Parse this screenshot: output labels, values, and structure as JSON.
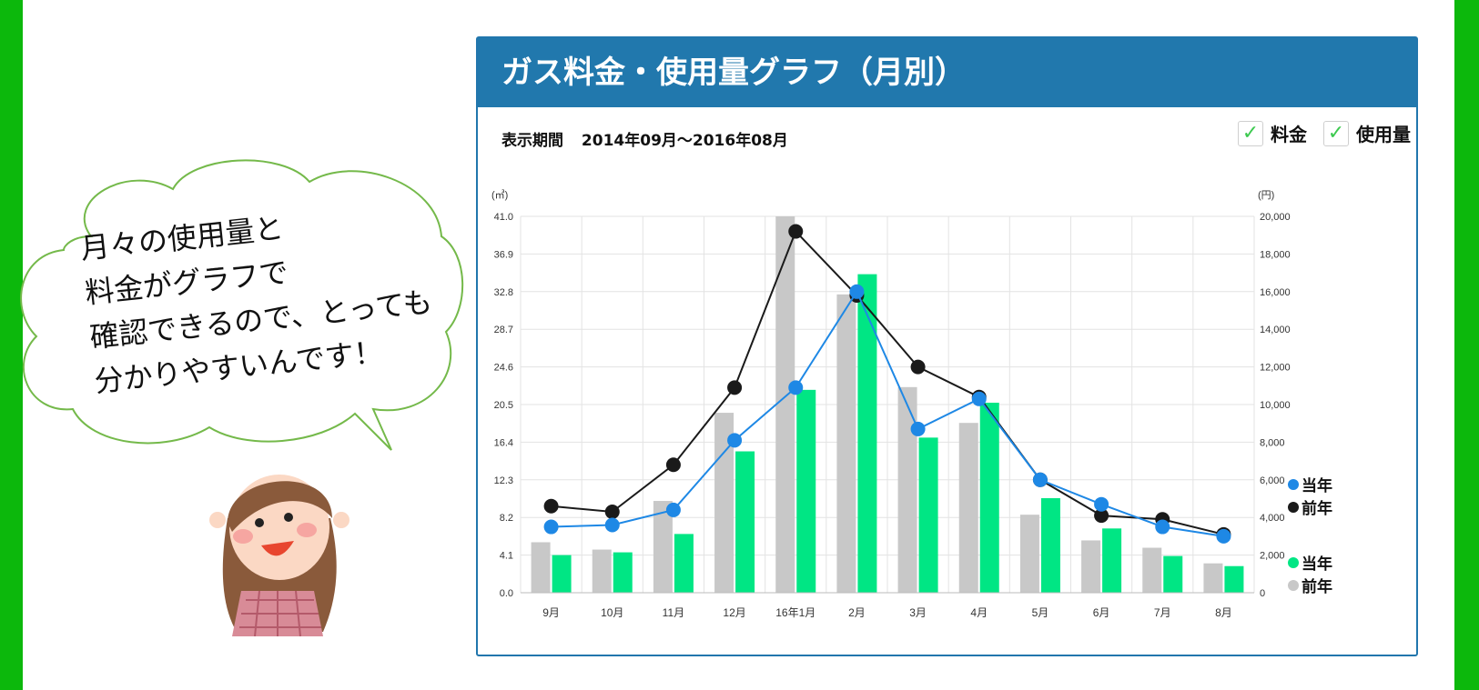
{
  "header": {
    "title": "ガス料金・使用量グラフ（月別）"
  },
  "period": {
    "label": "表示期間",
    "range": "2014年09月～2016年08月"
  },
  "toggles": [
    {
      "label": "料金",
      "checked": true
    },
    {
      "label": "使用量",
      "checked": true
    }
  ],
  "speech_bubble": {
    "text": "月々の使用量と\n料金がグラフで\n確認できるので、とっても\n分かりやすいんです！"
  },
  "colors": {
    "header_bg": "#2178ad",
    "side_bars": "#0cb80c",
    "bar_current": "#00e684",
    "bar_previous": "#c8c8c8",
    "line_current": "#1e88e5",
    "line_previous": "#1a1a1a"
  },
  "chart_data": {
    "type": "bar",
    "categories": [
      "9月",
      "10月",
      "11月",
      "12月",
      "16年1月",
      "2月",
      "3月",
      "4月",
      "5月",
      "6月",
      "7月",
      "8月"
    ],
    "y_left": {
      "unit": "(㎥)",
      "ticks": [
        "0.0",
        "4.1",
        "8.2",
        "12.3",
        "16.4",
        "20.5",
        "24.6",
        "28.7",
        "32.8",
        "36.9",
        "41.0"
      ],
      "range": [
        0,
        41
      ]
    },
    "y_right": {
      "unit": "(円)",
      "ticks": [
        "0",
        "2,000",
        "4,000",
        "6,000",
        "8,000",
        "10,000",
        "12,000",
        "14,000",
        "16,000",
        "18,000",
        "20,000"
      ],
      "range": [
        0,
        20000
      ]
    },
    "grid": true,
    "bar_series": [
      {
        "name": "前年",
        "color": "#c8c8c8",
        "axis": "left",
        "values": [
          5.5,
          4.7,
          10.0,
          19.6,
          41.0,
          32.5,
          22.4,
          18.5,
          8.5,
          5.7,
          4.9,
          3.2
        ]
      },
      {
        "name": "当年",
        "color": "#00e684",
        "axis": "left",
        "values": [
          4.1,
          4.4,
          6.4,
          15.4,
          22.1,
          34.7,
          16.9,
          20.7,
          10.3,
          7.0,
          4.0,
          2.9
        ]
      }
    ],
    "line_series": [
      {
        "name": "前年",
        "color": "#1a1a1a",
        "axis": "right",
        "values": [
          4600,
          4300,
          6800,
          10900,
          19200,
          15800,
          12000,
          10400,
          6000,
          4100,
          3900,
          3100
        ]
      },
      {
        "name": "当年",
        "color": "#1e88e5",
        "axis": "right",
        "values": [
          3500,
          3600,
          4400,
          8100,
          10900,
          16000,
          8700,
          10300,
          6000,
          4700,
          3500,
          3000
        ]
      }
    ],
    "legend": [
      {
        "name": "当年",
        "color": "#1e88e5"
      },
      {
        "name": "前年",
        "color": "#1a1a1a"
      },
      {
        "name": "当年",
        "color": "#00e684"
      },
      {
        "name": "前年",
        "color": "#c8c8c8"
      }
    ]
  }
}
